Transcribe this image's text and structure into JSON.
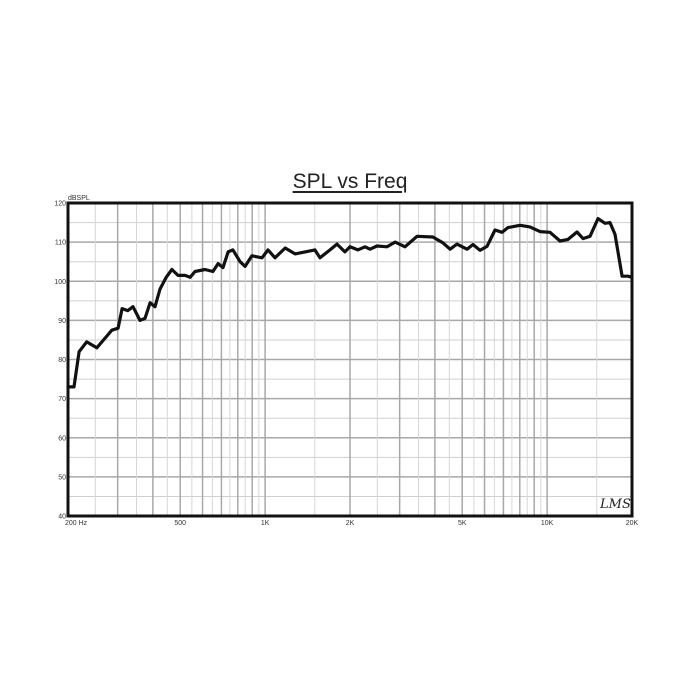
{
  "chart_data": {
    "type": "line",
    "title": "SPL vs Freq",
    "ylabel": "dBSPL",
    "xlabel": "",
    "x_scale": "log",
    "xlim": [
      200,
      20000
    ],
    "ylim": [
      40,
      120
    ],
    "grid": true,
    "x_ticks": [
      200,
      500,
      1000,
      2000,
      5000,
      10000,
      20000
    ],
    "x_tick_labels": [
      "200 Hz",
      "500",
      "1K",
      "2K",
      "5K",
      "10K",
      "20K"
    ],
    "y_ticks": [
      40,
      50,
      60,
      70,
      80,
      90,
      100,
      110,
      120
    ],
    "y_tick_labels": [
      "40",
      "50",
      "60",
      "70",
      "80",
      "90",
      "100",
      "110",
      "120"
    ],
    "logo": "LMS",
    "line_color": "#111111",
    "series": [
      {
        "x": [
          200,
          203,
          210,
          219,
          233,
          253,
          271,
          286,
          301,
          311,
          326,
          340,
          360,
          375,
          391,
          407,
          424,
          446,
          467,
          491,
          520,
          542,
          564,
          612,
          653,
          681,
          709,
          739,
          769,
          815,
          849,
          898,
          975,
          1024,
          1084,
          1178,
          1277,
          1385,
          1502,
          1565,
          1698,
          1799,
          1918,
          2000,
          2133,
          2260,
          2355,
          2494,
          2705,
          2890,
          3133,
          3455,
          3937,
          4274,
          4528,
          4789,
          5200,
          5459,
          5781,
          6122,
          6532,
          6922,
          7262,
          8012,
          8690,
          9436,
          10235,
          11110,
          11860,
          12760,
          13400,
          14190,
          15150,
          16040,
          16710,
          17410,
          18450,
          19360,
          20000
        ],
        "y": [
          73,
          73,
          73,
          82,
          84.5,
          83,
          85.5,
          87.5,
          88,
          93,
          92.5,
          93.5,
          90,
          90.5,
          94.5,
          93.5,
          98,
          101,
          103,
          101.5,
          101.5,
          101,
          102.5,
          103,
          102.5,
          104.5,
          103.5,
          107.5,
          108,
          105,
          103.8,
          106.5,
          106,
          108,
          106,
          108.5,
          107,
          107.5,
          108,
          106,
          108,
          109.5,
          107.5,
          108.8,
          108,
          108.8,
          108.2,
          109,
          108.8,
          110,
          108.8,
          111.5,
          111.3,
          109.8,
          108.2,
          109.5,
          108.2,
          109.4,
          107.9,
          108.9,
          113.1,
          112.5,
          113.7,
          114.3,
          113.9,
          112.7,
          112.5,
          110.3,
          110.7,
          112.6,
          110.9,
          111.5,
          116,
          114.8,
          115,
          112,
          101.3,
          101.3,
          101
        ]
      }
    ]
  }
}
